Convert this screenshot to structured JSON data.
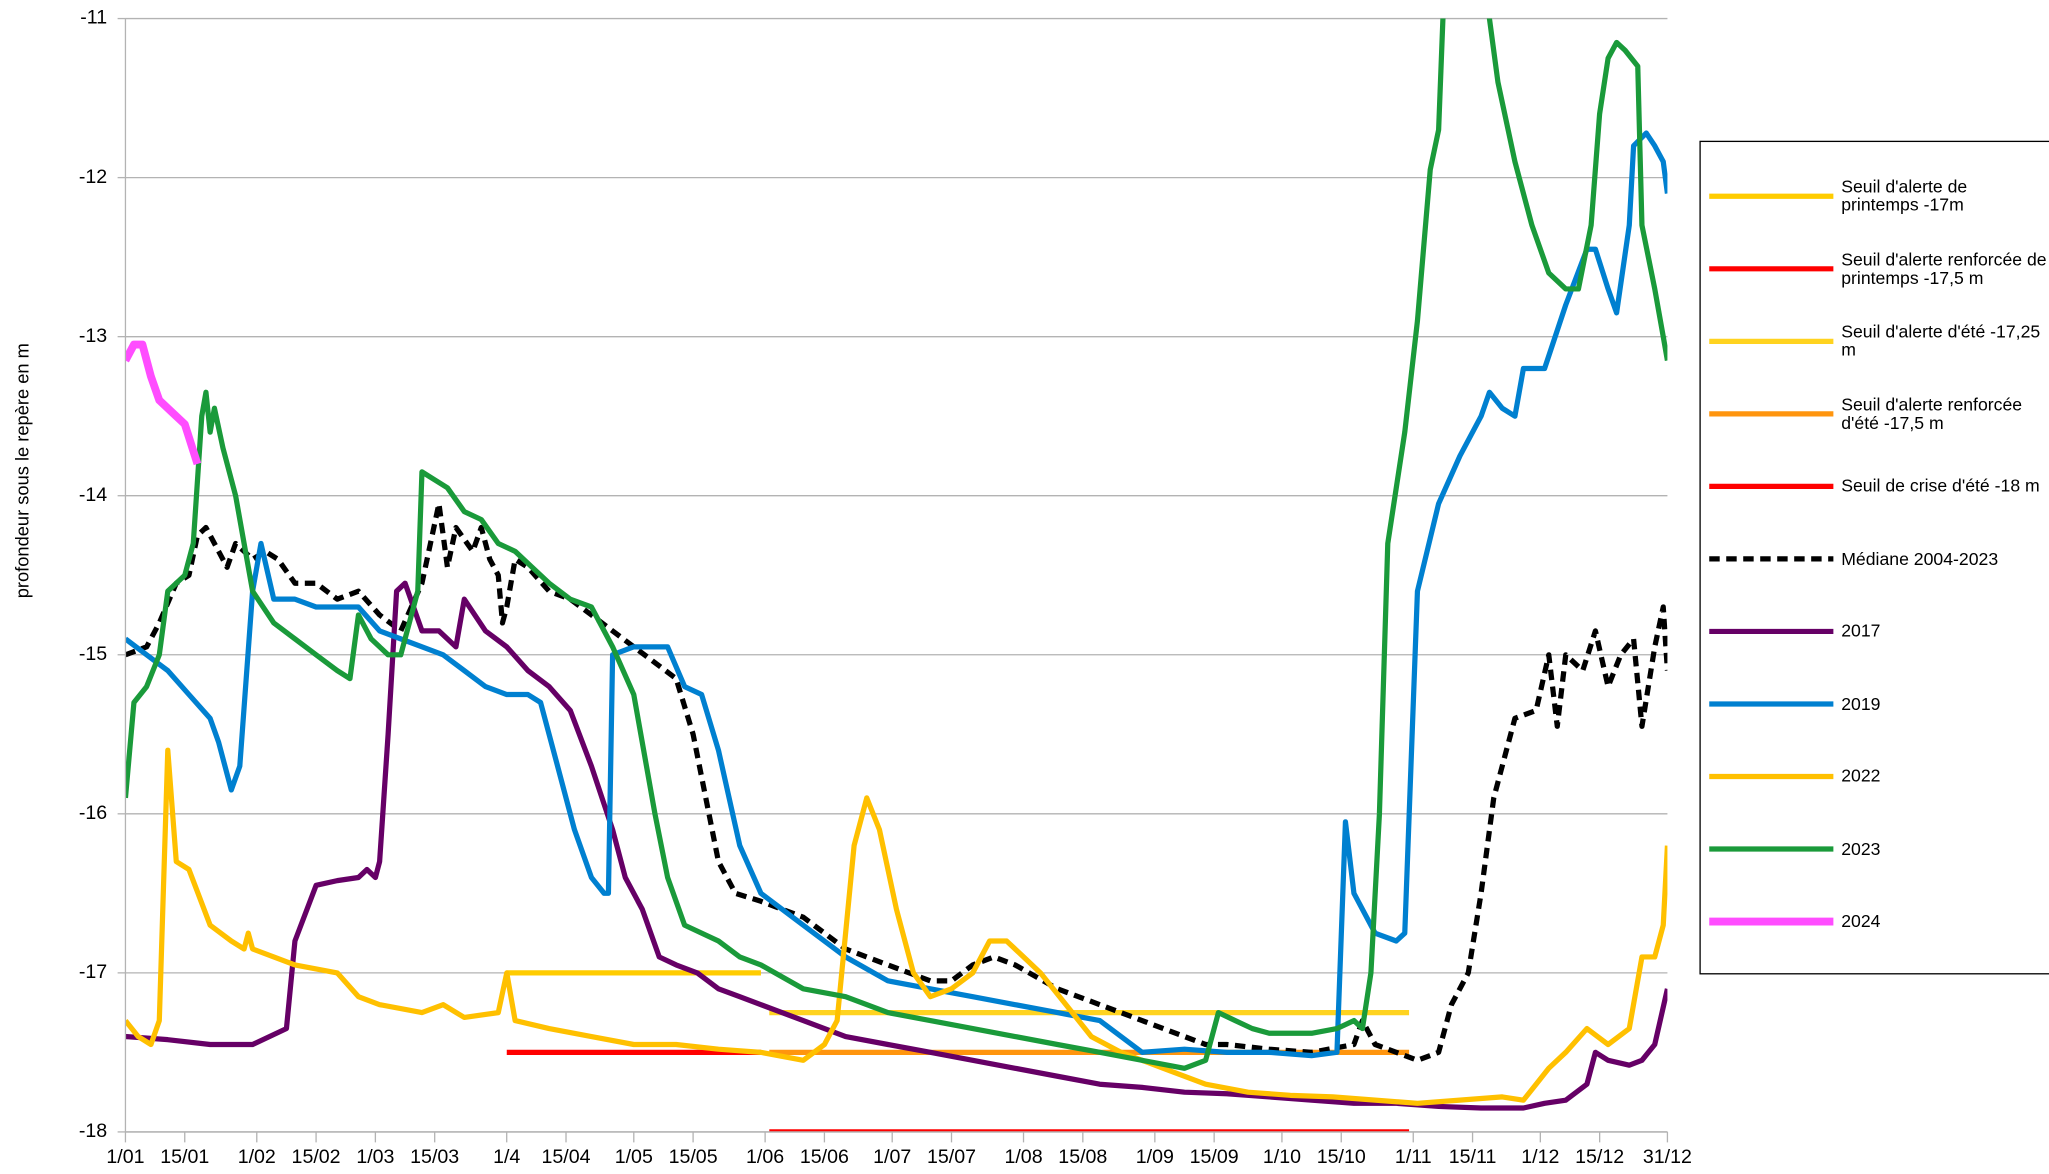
{
  "chart_data": {
    "type": "line",
    "y_label": "profondeur sous le repère en m",
    "xlim": [
      0,
      364
    ],
    "xticks": [
      {
        "value": 0,
        "label": "1/01"
      },
      {
        "value": 14,
        "label": "15/01"
      },
      {
        "value": 31,
        "label": "1/02"
      },
      {
        "value": 45,
        "label": "15/02"
      },
      {
        "value": 59,
        "label": "1/03"
      },
      {
        "value": 73,
        "label": "15/03"
      },
      {
        "value": 90,
        "label": "1/4"
      },
      {
        "value": 104,
        "label": "15/04"
      },
      {
        "value": 120,
        "label": "1/05"
      },
      {
        "value": 134,
        "label": "15/05"
      },
      {
        "value": 151,
        "label": "1/06"
      },
      {
        "value": 165,
        "label": "15/06"
      },
      {
        "value": 181,
        "label": "1/07"
      },
      {
        "value": 195,
        "label": "15/07"
      },
      {
        "value": 212,
        "label": "1/08"
      },
      {
        "value": 226,
        "label": "15/08"
      },
      {
        "value": 243,
        "label": "1/09"
      },
      {
        "value": 257,
        "label": "15/09"
      },
      {
        "value": 273,
        "label": "1/10"
      },
      {
        "value": 287,
        "label": "15/10"
      },
      {
        "value": 304,
        "label": "1/11"
      },
      {
        "value": 318,
        "label": "15/11"
      },
      {
        "value": 334,
        "label": "1/12"
      },
      {
        "value": 348,
        "label": "15/12"
      },
      {
        "value": 364,
        "label": "31/12"
      }
    ],
    "ylim": [
      -18,
      -11
    ],
    "yticks": [
      -18,
      -17,
      -16,
      -15,
      -14,
      -13,
      -12,
      -11
    ],
    "grid": true,
    "legend": "right",
    "series": [
      {
        "name": "Seuil d'alerte de printemps -17m",
        "color": "#ffcc00",
        "x": [
          90,
          150
        ],
        "values": [
          -17,
          -17
        ]
      },
      {
        "name": "Seuil d'alerte renforcée de printemps -17,5 m",
        "color": "#ff0000",
        "x": [
          90,
          150
        ],
        "values": [
          -17.5,
          -17.5
        ]
      },
      {
        "name": "Seuil d'alerte d'été -17,25 m",
        "color": "#ffd320",
        "x": [
          152,
          303
        ],
        "values": [
          -17.25,
          -17.25
        ]
      },
      {
        "name": "Seuil d'alerte renforcée d'été -17,5 m",
        "color": "#ff950e",
        "x": [
          152,
          303
        ],
        "values": [
          -17.5,
          -17.5
        ]
      },
      {
        "name": "Seuil de crise d'été -18 m",
        "color": "#ff0000",
        "x": [
          152,
          303
        ],
        "values": [
          -18,
          -18
        ]
      },
      {
        "name": "Médiane 2004-2023",
        "color": "#000000",
        "dashed": true,
        "x": [
          0,
          5,
          8,
          12,
          15,
          17,
          19,
          22,
          24,
          26,
          28,
          30,
          33,
          36,
          40,
          45,
          50,
          55,
          60,
          65,
          70,
          72,
          74,
          76,
          78,
          82,
          84,
          86,
          88,
          89,
          90,
          92,
          95,
          100,
          105,
          110,
          115,
          120,
          125,
          130,
          134,
          137,
          140,
          144,
          150,
          160,
          170,
          180,
          190,
          195,
          200,
          205,
          210,
          220,
          230,
          240,
          250,
          255,
          260,
          270,
          280,
          290,
          292,
          295,
          300,
          305,
          310,
          313,
          317,
          320,
          323,
          326,
          328,
          333,
          336,
          338,
          340,
          344,
          347,
          350,
          353,
          356,
          358,
          361,
          363,
          364
        ],
        "values": [
          -15.0,
          -14.95,
          -14.8,
          -14.55,
          -14.5,
          -14.25,
          -14.2,
          -14.35,
          -14.45,
          -14.3,
          -14.35,
          -14.4,
          -14.35,
          -14.4,
          -14.55,
          -14.55,
          -14.65,
          -14.6,
          -14.75,
          -14.85,
          -14.55,
          -14.3,
          -14.05,
          -14.45,
          -14.2,
          -14.35,
          -14.2,
          -14.4,
          -14.5,
          -14.8,
          -14.7,
          -14.4,
          -14.45,
          -14.6,
          -14.65,
          -14.75,
          -14.85,
          -14.95,
          -15.05,
          -15.15,
          -15.5,
          -15.9,
          -16.3,
          -16.5,
          -16.55,
          -16.65,
          -16.85,
          -16.95,
          -17.05,
          -17.05,
          -16.95,
          -16.9,
          -16.95,
          -17.1,
          -17.2,
          -17.3,
          -17.4,
          -17.45,
          -17.45,
          -17.48,
          -17.5,
          -17.45,
          -17.3,
          -17.45,
          -17.5,
          -17.55,
          -17.5,
          -17.2,
          -17.0,
          -16.5,
          -15.9,
          -15.6,
          -15.4,
          -15.35,
          -15.0,
          -15.45,
          -15.0,
          -15.1,
          -14.85,
          -15.2,
          -15.0,
          -14.9,
          -15.45,
          -14.95,
          -14.7,
          -15.1
        ]
      },
      {
        "name": "2017",
        "color": "#660066",
        "x": [
          0,
          10,
          20,
          30,
          38,
          40,
          45,
          50,
          55,
          57,
          59,
          60,
          62,
          64,
          66,
          70,
          74,
          78,
          80,
          85,
          90,
          95,
          100,
          105,
          110,
          115,
          118,
          122,
          126,
          130,
          135,
          140,
          145,
          150,
          160,
          170,
          180,
          190,
          200,
          210,
          220,
          230,
          240,
          250,
          260,
          270,
          280,
          290,
          300,
          310,
          320,
          330,
          335,
          340,
          345,
          347,
          350,
          355,
          358,
          361,
          364
        ],
        "values": [
          -17.4,
          -17.42,
          -17.45,
          -17.45,
          -17.35,
          -16.8,
          -16.45,
          -16.42,
          -16.4,
          -16.35,
          -16.4,
          -16.3,
          -15.5,
          -14.6,
          -14.55,
          -14.85,
          -14.85,
          -14.95,
          -14.65,
          -14.85,
          -14.95,
          -15.1,
          -15.2,
          -15.35,
          -15.7,
          -16.1,
          -16.4,
          -16.6,
          -16.9,
          -16.95,
          -17.0,
          -17.1,
          -17.15,
          -17.2,
          -17.3,
          -17.4,
          -17.45,
          -17.5,
          -17.55,
          -17.6,
          -17.65,
          -17.7,
          -17.72,
          -17.75,
          -17.76,
          -17.78,
          -17.8,
          -17.82,
          -17.82,
          -17.84,
          -17.85,
          -17.85,
          -17.82,
          -17.8,
          -17.7,
          -17.5,
          -17.55,
          -17.58,
          -17.55,
          -17.45,
          -17.1
        ]
      },
      {
        "name": "2019",
        "color": "#0080d0",
        "x": [
          0,
          5,
          10,
          15,
          20,
          22,
          25,
          27,
          30,
          32,
          35,
          40,
          45,
          50,
          55,
          60,
          65,
          70,
          75,
          80,
          85,
          90,
          95,
          98,
          102,
          106,
          110,
          113,
          114,
          115,
          120,
          125,
          128,
          132,
          136,
          140,
          145,
          150,
          160,
          170,
          180,
          190,
          200,
          210,
          220,
          230,
          240,
          250,
          260,
          270,
          280,
          286,
          288,
          290,
          295,
          300,
          302,
          305,
          310,
          315,
          320,
          322,
          325,
          328,
          330,
          335,
          340,
          345,
          347,
          350,
          352,
          355,
          356,
          359,
          361,
          363,
          364
        ],
        "values": [
          -14.9,
          -15.0,
          -15.1,
          -15.25,
          -15.4,
          -15.55,
          -15.85,
          -15.7,
          -14.6,
          -14.3,
          -14.65,
          -14.65,
          -14.7,
          -14.7,
          -14.7,
          -14.85,
          -14.9,
          -14.95,
          -15.0,
          -15.1,
          -15.2,
          -15.25,
          -15.25,
          -15.3,
          -15.7,
          -16.1,
          -16.4,
          -16.5,
          -16.5,
          -15.0,
          -14.95,
          -14.95,
          -14.95,
          -15.2,
          -15.25,
          -15.6,
          -16.2,
          -16.5,
          -16.7,
          -16.9,
          -17.05,
          -17.1,
          -17.15,
          -17.2,
          -17.25,
          -17.3,
          -17.5,
          -17.48,
          -17.5,
          -17.5,
          -17.52,
          -17.5,
          -16.05,
          -16.5,
          -16.75,
          -16.8,
          -16.75,
          -14.6,
          -14.05,
          -13.75,
          -13.5,
          -13.35,
          -13.45,
          -13.5,
          -13.2,
          -13.2,
          -12.8,
          -12.45,
          -12.45,
          -12.7,
          -12.85,
          -12.3,
          -11.8,
          -11.72,
          -11.8,
          -11.9,
          -12.1
        ]
      },
      {
        "name": "2022",
        "color": "#ffc000",
        "x": [
          0,
          3,
          6,
          8,
          10,
          12,
          15,
          20,
          25,
          28,
          29,
          30,
          35,
          40,
          50,
          55,
          60,
          70,
          75,
          80,
          88,
          90,
          92,
          100,
          110,
          120,
          130,
          140,
          150,
          160,
          165,
          168,
          172,
          175,
          178,
          182,
          186,
          190,
          195,
          200,
          204,
          208,
          212,
          216,
          222,
          228,
          235,
          245,
          255,
          265,
          275,
          285,
          295,
          305,
          315,
          325,
          330,
          333,
          336,
          340,
          345,
          350,
          355,
          358,
          361,
          363,
          364
        ],
        "values": [
          -17.3,
          -17.4,
          -17.45,
          -17.3,
          -15.6,
          -16.3,
          -16.35,
          -16.7,
          -16.8,
          -16.85,
          -16.75,
          -16.85,
          -16.9,
          -16.95,
          -17.0,
          -17.15,
          -17.2,
          -17.25,
          -17.2,
          -17.28,
          -17.25,
          -17.0,
          -17.3,
          -17.35,
          -17.4,
          -17.45,
          -17.45,
          -17.48,
          -17.5,
          -17.55,
          -17.45,
          -17.3,
          -16.2,
          -15.9,
          -16.1,
          -16.6,
          -17.0,
          -17.15,
          -17.1,
          -17.0,
          -16.8,
          -16.8,
          -16.9,
          -17.0,
          -17.2,
          -17.4,
          -17.5,
          -17.6,
          -17.7,
          -17.75,
          -17.77,
          -17.78,
          -17.8,
          -17.82,
          -17.8,
          -17.78,
          -17.8,
          -17.7,
          -17.6,
          -17.5,
          -17.35,
          -17.45,
          -17.35,
          -16.9,
          -16.9,
          -16.7,
          -16.2
        ]
      },
      {
        "name": "2023",
        "color": "#1a9a3a",
        "x": [
          0,
          2,
          5,
          8,
          10,
          14,
          16,
          18,
          19,
          20,
          21,
          23,
          26,
          28,
          30,
          35,
          40,
          45,
          50,
          53,
          55,
          58,
          62,
          65,
          69,
          70,
          73,
          76,
          80,
          84,
          88,
          92,
          96,
          100,
          105,
          110,
          115,
          120,
          125,
          128,
          132,
          140,
          145,
          150,
          160,
          170,
          180,
          190,
          200,
          210,
          220,
          230,
          240,
          250,
          255,
          258,
          262,
          266,
          270,
          280,
          286,
          290,
          292,
          294,
          296,
          298,
          302,
          305,
          308,
          310,
          311,
          315,
          320,
          322,
          324,
          328,
          332,
          336,
          340,
          343,
          346,
          348,
          350,
          352,
          354,
          357,
          358,
          361,
          363,
          364
        ],
        "values": [
          -15.9,
          -15.3,
          -15.2,
          -15.0,
          -14.6,
          -14.5,
          -14.3,
          -13.5,
          -13.35,
          -13.6,
          -13.45,
          -13.7,
          -14.0,
          -14.3,
          -14.6,
          -14.8,
          -14.9,
          -15.0,
          -15.1,
          -15.15,
          -14.75,
          -14.9,
          -15.0,
          -15.0,
          -14.6,
          -13.85,
          -13.9,
          -13.95,
          -14.1,
          -14.15,
          -14.3,
          -14.35,
          -14.45,
          -14.55,
          -14.65,
          -14.7,
          -14.95,
          -15.25,
          -16.0,
          -16.4,
          -16.7,
          -16.8,
          -16.9,
          -16.95,
          -17.1,
          -17.15,
          -17.25,
          -17.3,
          -17.35,
          -17.4,
          -17.45,
          -17.5,
          -17.55,
          -17.6,
          -17.55,
          -17.25,
          -17.3,
          -17.35,
          -17.38,
          -17.38,
          -17.35,
          -17.3,
          -17.35,
          -17.0,
          -16.0,
          -14.3,
          -13.6,
          -12.9,
          -11.95,
          -11.7,
          -11.0,
          -10.5,
          -10.6,
          -11.0,
          -11.4,
          -11.9,
          -12.3,
          -12.6,
          -12.7,
          -12.7,
          -12.3,
          -11.6,
          -11.25,
          -11.15,
          -11.2,
          -11.3,
          -12.3,
          -12.7,
          -13.0,
          -13.15
        ]
      },
      {
        "name": "2024",
        "color": "#ff4dff",
        "line_width": 6,
        "x": [
          0,
          2,
          4,
          6,
          8,
          10,
          12,
          14,
          17
        ],
        "values": [
          -13.15,
          -13.05,
          -13.05,
          -13.25,
          -13.4,
          -13.45,
          -13.5,
          -13.55,
          -13.8
        ]
      }
    ]
  }
}
